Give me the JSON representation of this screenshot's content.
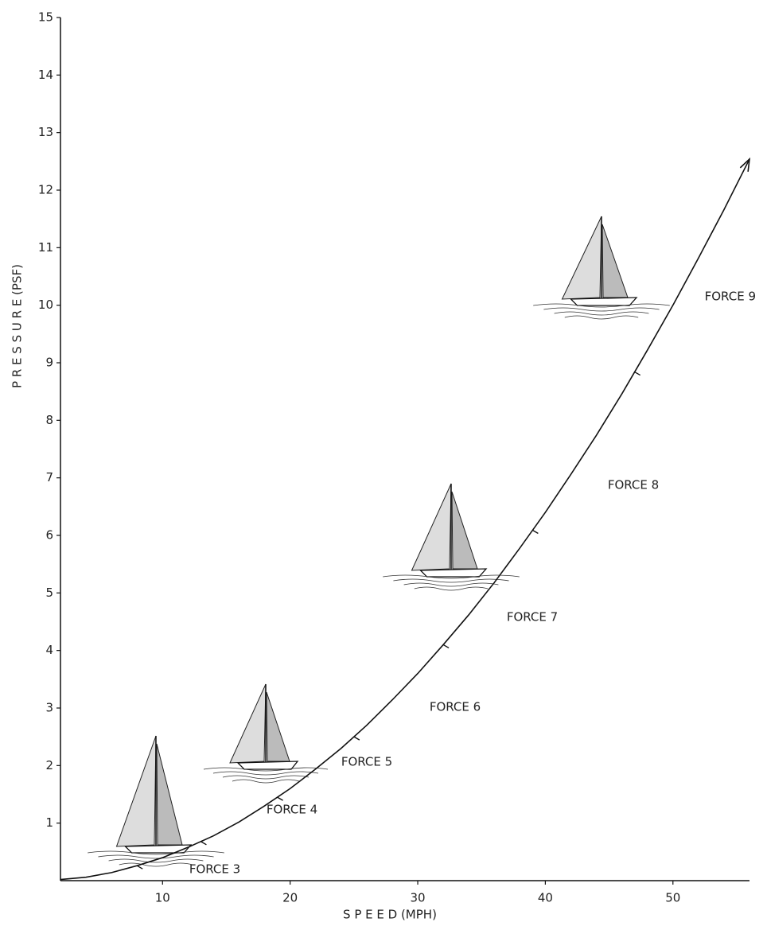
{
  "chart_data": {
    "type": "line",
    "x_label": "S P E E D   (MPH)",
    "y_label": "P R E S S U R E   (PSF)",
    "x": [
      2,
      4,
      6,
      8,
      10,
      12,
      14,
      16,
      18,
      20,
      22,
      24,
      26,
      28,
      30,
      32,
      34,
      36,
      38,
      40,
      42,
      44,
      46,
      48,
      50,
      52,
      54,
      56
    ],
    "series": [
      {
        "color": "#111111",
        "values": [
          0.02,
          0.06,
          0.14,
          0.26,
          0.4,
          0.58,
          0.78,
          1.02,
          1.3,
          1.6,
          1.94,
          2.3,
          2.7,
          3.14,
          3.6,
          4.1,
          4.62,
          5.18,
          5.78,
          6.4,
          7.06,
          7.74,
          8.46,
          9.22,
          10,
          10.82,
          11.66,
          12.54
        ]
      }
    ],
    "force_boundaries": [
      8,
      13,
      19,
      25,
      32,
      39,
      47
    ],
    "annotations": [
      "FORCE 3",
      "FORCE 4",
      "FORCE 5",
      "FORCE 6",
      "FORCE 7",
      "FORCE 8",
      "FORCE 9"
    ],
    "xlim": [
      2,
      56
    ],
    "xticks": [
      10,
      20,
      30,
      40,
      50
    ],
    "ylim": [
      0,
      15
    ],
    "yticks": [
      1,
      2,
      3,
      4,
      5,
      6,
      7,
      8,
      9,
      10,
      11,
      12,
      13,
      14,
      15
    ],
    "grid": false
  }
}
